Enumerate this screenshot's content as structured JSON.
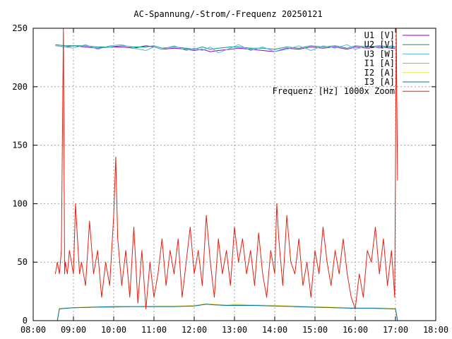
{
  "chart_data": {
    "type": "line",
    "title": "AC-Spannung/-Strom/-Frequenz 20250121",
    "xlabel": "",
    "ylabel": "",
    "xlim": [
      8,
      18
    ],
    "ylim": [
      0,
      250
    ],
    "x_ticks": [
      {
        "value": 8,
        "label": "08:00"
      },
      {
        "value": 9,
        "label": "09:00"
      },
      {
        "value": 10,
        "label": "10:00"
      },
      {
        "value": 11,
        "label": "11:00"
      },
      {
        "value": 12,
        "label": "12:00"
      },
      {
        "value": 13,
        "label": "13:00"
      },
      {
        "value": 14,
        "label": "14:00"
      },
      {
        "value": 15,
        "label": "15:00"
      },
      {
        "value": 16,
        "label": "16:00"
      },
      {
        "value": 17,
        "label": "17:00"
      },
      {
        "value": 18,
        "label": "18:00"
      }
    ],
    "y_ticks": [
      0,
      50,
      100,
      150,
      200,
      250
    ],
    "grid": true,
    "legend_position": "top-right",
    "series": [
      {
        "name": "U1 [V]",
        "color": "#9400d3",
        "x": [
          8.55,
          8.8,
          9.0,
          9.3,
          9.6,
          9.9,
          10.2,
          10.5,
          10.8,
          11.0,
          11.2,
          11.5,
          11.8,
          12.0,
          12.2,
          12.4,
          12.6,
          12.9,
          13.1,
          13.4,
          13.7,
          14.0,
          14.3,
          14.6,
          14.9,
          15.2,
          15.5,
          15.8,
          16.0,
          16.3,
          16.6,
          16.9,
          17.0
        ],
        "y": [
          235,
          234,
          235,
          234,
          233,
          234,
          234,
          233,
          235,
          234,
          232,
          233,
          232,
          231,
          232,
          230,
          231,
          232,
          233,
          232,
          231,
          230,
          233,
          232,
          234,
          233,
          234,
          232,
          234,
          233,
          234,
          233,
          233
        ]
      },
      {
        "name": "U2 [V]",
        "color": "#009e73",
        "x": [
          8.55,
          8.8,
          9.0,
          9.3,
          9.6,
          9.9,
          10.2,
          10.5,
          10.8,
          11.0,
          11.2,
          11.5,
          11.8,
          12.0,
          12.2,
          12.4,
          12.6,
          12.9,
          13.1,
          13.4,
          13.7,
          14.0,
          14.3,
          14.6,
          14.9,
          15.2,
          15.5,
          15.8,
          16.0,
          16.3,
          16.6,
          16.9,
          17.0
        ],
        "y": [
          236,
          235,
          235,
          235,
          234,
          234,
          235,
          234,
          234,
          235,
          233,
          234,
          233,
          232,
          234,
          232,
          233,
          234,
          234,
          233,
          233,
          232,
          234,
          233,
          235,
          234,
          235,
          233,
          235,
          234,
          235,
          234,
          234
        ]
      },
      {
        "name": "U3 [W]",
        "color": "#56b4e9",
        "x": [
          8.55,
          8.8,
          9.0,
          9.3,
          9.6,
          9.9,
          10.2,
          10.5,
          10.8,
          11.0,
          11.2,
          11.5,
          11.8,
          12.0,
          12.2,
          12.4,
          12.6,
          12.9,
          13.1,
          13.4,
          13.7,
          14.0,
          14.3,
          14.6,
          14.9,
          15.2,
          15.5,
          15.8,
          16.0,
          16.3,
          16.6,
          16.9,
          17.0
        ],
        "y": [
          235,
          234,
          233,
          236,
          232,
          235,
          236,
          233,
          231,
          234,
          232,
          235,
          231,
          233,
          231,
          234,
          229,
          233,
          236,
          231,
          234,
          230,
          232,
          235,
          231,
          235,
          233,
          236,
          232,
          235,
          233,
          235,
          234
        ]
      },
      {
        "name": "I1 [A]",
        "color": "#e69f00",
        "x": [
          8.6,
          8.65,
          8.8,
          9.0,
          9.5,
          10.0,
          10.5,
          11.0,
          11.5,
          12.0,
          12.3,
          12.5,
          12.8,
          13.0,
          13.5,
          14.0,
          14.5,
          15.0,
          15.5,
          16.0,
          16.5,
          17.0,
          17.05
        ],
        "y": [
          0,
          10,
          10.5,
          11,
          11.5,
          11.5,
          12,
          12,
          12,
          12.5,
          14,
          13.5,
          13,
          13.5,
          13,
          12.5,
          12,
          11.5,
          11,
          11,
          10.5,
          10,
          0
        ]
      },
      {
        "name": "I2 [A]",
        "color": "#f0e442",
        "x": [
          8.6,
          8.65,
          8.8,
          9.0,
          9.5,
          10.0,
          10.5,
          11.0,
          11.5,
          12.0,
          12.3,
          12.5,
          12.8,
          13.0,
          13.5,
          14.0,
          14.5,
          15.0,
          15.5,
          16.0,
          16.5,
          17.0,
          17.05
        ],
        "y": [
          0,
          10.5,
          11,
          11,
          12,
          12,
          12,
          12.5,
          12.5,
          13,
          14.5,
          14,
          13.5,
          14,
          13.5,
          13,
          12.5,
          12,
          11.5,
          11,
          11,
          10.5,
          0
        ]
      },
      {
        "name": "I3 [A]",
        "color": "#0072b2",
        "x": [
          8.6,
          8.65,
          8.8,
          9.0,
          9.5,
          10.0,
          10.5,
          11.0,
          11.5,
          12.0,
          12.3,
          12.5,
          12.8,
          13.0,
          13.5,
          14.0,
          14.5,
          15.0,
          15.5,
          16.0,
          16.5,
          17.0,
          17.05
        ],
        "y": [
          0,
          10,
          10.5,
          11,
          11.5,
          12,
          12,
          12,
          12,
          12.5,
          14,
          13.5,
          13,
          13,
          13,
          12.5,
          12,
          11.5,
          11,
          10.5,
          10.5,
          10,
          0
        ]
      },
      {
        "name": "Frequenz [Hz] 1000x Zoom",
        "color": "#e51e10",
        "x": [
          8.55,
          8.6,
          8.65,
          8.7,
          8.75,
          8.78,
          8.8,
          8.85,
          8.9,
          8.95,
          9.0,
          9.05,
          9.1,
          9.15,
          9.2,
          9.3,
          9.4,
          9.5,
          9.6,
          9.7,
          9.8,
          9.9,
          10.0,
          10.05,
          10.1,
          10.2,
          10.3,
          10.4,
          10.5,
          10.6,
          10.7,
          10.8,
          10.9,
          11.0,
          11.1,
          11.2,
          11.3,
          11.4,
          11.5,
          11.6,
          11.7,
          11.8,
          11.9,
          12.0,
          12.1,
          12.2,
          12.3,
          12.4,
          12.5,
          12.6,
          12.7,
          12.8,
          12.9,
          13.0,
          13.1,
          13.2,
          13.3,
          13.4,
          13.5,
          13.6,
          13.7,
          13.8,
          13.9,
          14.0,
          14.05,
          14.1,
          14.2,
          14.3,
          14.4,
          14.5,
          14.6,
          14.7,
          14.8,
          14.9,
          15.0,
          15.1,
          15.2,
          15.3,
          15.4,
          15.5,
          15.6,
          15.7,
          15.8,
          15.9,
          16.0,
          16.1,
          16.2,
          16.3,
          16.4,
          16.5,
          16.6,
          16.7,
          16.8,
          16.9,
          16.98,
          17.02,
          17.05
        ],
        "y": [
          40,
          50,
          40,
          60,
          250,
          40,
          50,
          40,
          60,
          50,
          40,
          100,
          70,
          40,
          50,
          30,
          85,
          40,
          60,
          20,
          50,
          30,
          90,
          140,
          70,
          30,
          60,
          20,
          80,
          15,
          60,
          10,
          50,
          20,
          40,
          70,
          30,
          60,
          40,
          70,
          20,
          50,
          80,
          40,
          60,
          30,
          90,
          50,
          20,
          70,
          40,
          60,
          30,
          80,
          50,
          70,
          40,
          60,
          30,
          75,
          40,
          20,
          60,
          40,
          100,
          70,
          30,
          90,
          50,
          40,
          70,
          30,
          50,
          20,
          60,
          40,
          80,
          50,
          30,
          60,
          40,
          70,
          40,
          20,
          10,
          40,
          20,
          60,
          50,
          80,
          40,
          70,
          30,
          60,
          20,
          250,
          120
        ]
      }
    ]
  }
}
